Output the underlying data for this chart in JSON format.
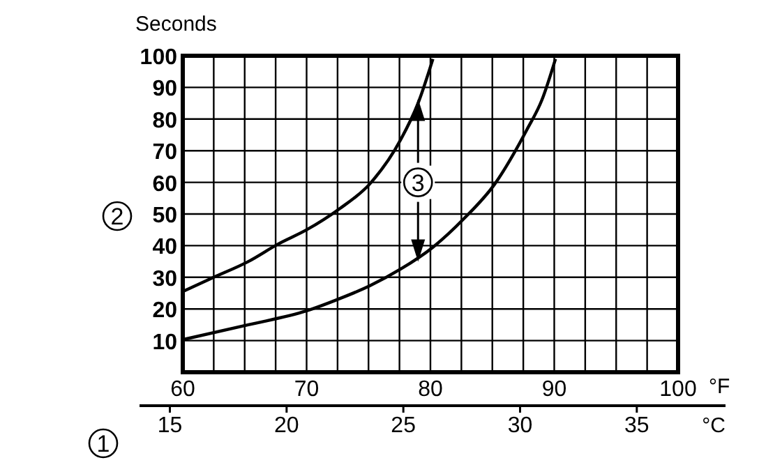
{
  "chart_data": {
    "type": "line",
    "ylabel": "Seconds",
    "xlabel": "°F",
    "x2label": "°C",
    "series": [
      {
        "color": "#000000",
        "x": [
          60,
          62.5,
          65.3,
          67.7,
          70,
          72.6,
          75.1,
          77.6,
          79,
          80.2
        ],
        "values": [
          25.5,
          30,
          35,
          40.5,
          45,
          51.5,
          59.5,
          73.5,
          85,
          99
        ]
      },
      {
        "color": "#000000",
        "x": [
          60,
          65.3,
          70,
          72.5,
          75.1,
          77.6,
          80.2,
          82.7,
          85.2,
          87.8,
          89,
          90.1
        ],
        "values": [
          10.3,
          15,
          19.4,
          23,
          27.3,
          32.6,
          39.5,
          48.5,
          59.5,
          76.7,
          86,
          99
        ]
      }
    ],
    "xlim": [
      60,
      100
    ],
    "xticks": [
      60,
      {
        "value": 62.5,
        "label": null
      },
      {
        "value": 65,
        "label": null
      },
      {
        "value": 67.5,
        "label": null
      },
      70,
      {
        "value": 72.5,
        "label": null
      },
      {
        "value": 75,
        "label": null
      },
      {
        "value": 77.5,
        "label": null
      },
      80,
      {
        "value": 82.5,
        "label": null
      },
      {
        "value": 85,
        "label": null
      },
      {
        "value": 87.5,
        "label": null
      },
      90,
      {
        "value": 92.5,
        "label": null
      },
      {
        "value": 95,
        "label": null
      },
      {
        "value": 97.5,
        "label": null
      },
      100
    ],
    "ylim": [
      0,
      100
    ],
    "yticks": [
      10,
      20,
      30,
      40,
      50,
      60,
      70,
      80,
      90,
      100
    ],
    "x2lim": [
      13.7,
      38.8
    ],
    "x2ticks": [
      15,
      20,
      25,
      30,
      35
    ],
    "grid": true,
    "line_style": "solid",
    "marker": "none",
    "annotations": [
      "1",
      "2",
      {
        "text": "3",
        "x": 79,
        "y": 60
      }
    ]
  }
}
